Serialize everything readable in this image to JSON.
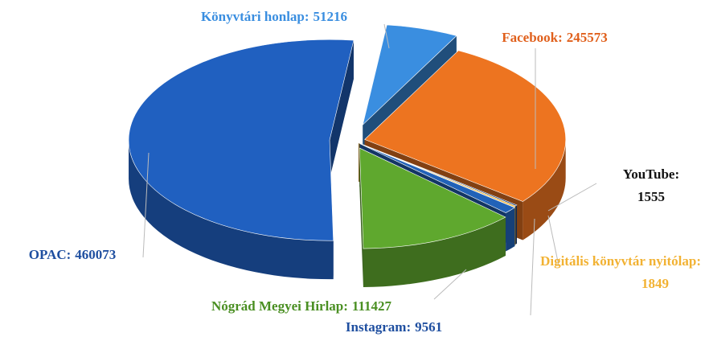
{
  "chart_data": {
    "type": "pie",
    "categories": [
      "Könyvtári honlap:",
      "Facebook:",
      "YouTube:",
      "Digitális könyvtár nyitólap:",
      "Instagram:",
      "Nógrád Megyei Hírlap:",
      "OPAC:"
    ],
    "values": [
      51216,
      245573,
      1555,
      1849,
      9561,
      111427,
      460073
    ],
    "colors": [
      "#3a8ee0",
      "#ed7420",
      "#1a3f7a",
      "#f2b233",
      "#2262b8",
      "#5fa82e",
      "#2060c0"
    ],
    "label_colors": [
      "#3a8ee0",
      "#e0601c",
      "#111111",
      "#f2b233",
      "#1f4fa0",
      "#4a8f22",
      "#1f4fa0"
    ]
  }
}
